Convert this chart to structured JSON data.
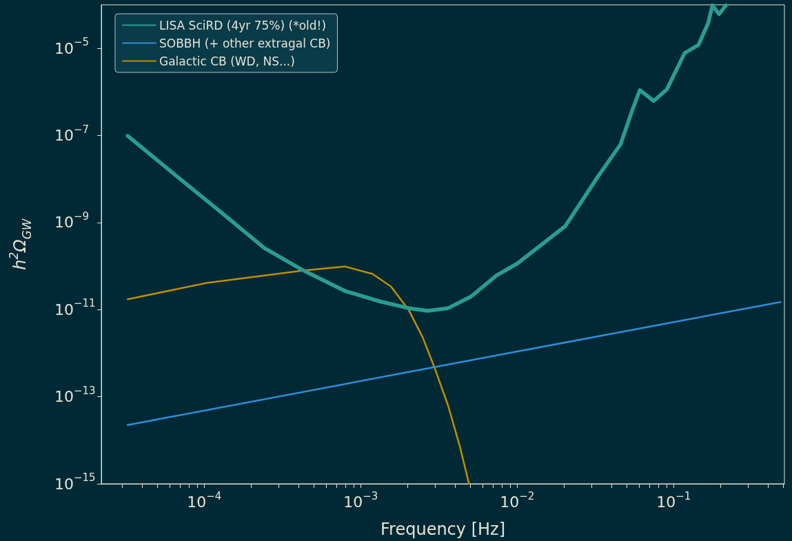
{
  "chart_data": {
    "type": "line",
    "xlabel": "Frequency [Hz]",
    "ylabel": "h$^{2}$Ω$_{GW}$",
    "log": "xy",
    "grid": false,
    "legend": "top left",
    "marker": "none",
    "line_style": "solid",
    "xlim": [
      2.2e-05,
      0.51
    ],
    "ylim": [
      1e-15,
      0.0001
    ],
    "xticks": [
      {
        "value": 3e-05,
        "label": null
      },
      {
        "value": 4e-05,
        "label": null
      },
      {
        "value": 5e-05,
        "label": null
      },
      {
        "value": 6e-05,
        "label": null
      },
      {
        "value": 7e-05,
        "label": null
      },
      {
        "value": 8e-05,
        "label": null
      },
      {
        "value": 9e-05,
        "label": null
      },
      {
        "value": 0.0001,
        "label": "10$^{−4}$"
      },
      {
        "value": 0.0002,
        "label": null
      },
      {
        "value": 0.0003,
        "label": null
      },
      {
        "value": 0.0004,
        "label": null
      },
      {
        "value": 0.0005,
        "label": null
      },
      {
        "value": 0.0006,
        "label": null
      },
      {
        "value": 0.0007,
        "label": null
      },
      {
        "value": 0.0008,
        "label": null
      },
      {
        "value": 0.0009,
        "label": null
      },
      {
        "value": 0.001,
        "label": "10$^{−3}$"
      },
      {
        "value": 0.002,
        "label": null
      },
      {
        "value": 0.003,
        "label": null
      },
      {
        "value": 0.004,
        "label": null
      },
      {
        "value": 0.005,
        "label": null
      },
      {
        "value": 0.006,
        "label": null
      },
      {
        "value": 0.007,
        "label": null
      },
      {
        "value": 0.008,
        "label": null
      },
      {
        "value": 0.009,
        "label": null
      },
      {
        "value": 0.01,
        "label": "10$^{−2}$"
      },
      {
        "value": 0.02,
        "label": null
      },
      {
        "value": 0.03,
        "label": null
      },
      {
        "value": 0.04,
        "label": null
      },
      {
        "value": 0.05,
        "label": null
      },
      {
        "value": 0.06,
        "label": null
      },
      {
        "value": 0.07,
        "label": null
      },
      {
        "value": 0.08,
        "label": null
      },
      {
        "value": 0.09,
        "label": null
      },
      {
        "value": 0.1,
        "label": "10$^{−1}$"
      },
      {
        "value": 0.2,
        "label": null
      },
      {
        "value": 0.3,
        "label": null
      },
      {
        "value": 0.4,
        "label": null
      },
      {
        "value": 0.5,
        "label": null
      }
    ],
    "yticks": [
      {
        "value": 1e-15,
        "label": "10$^{−15}$"
      },
      {
        "value": 1e-13,
        "label": "10$^{−13}$"
      },
      {
        "value": 1e-11,
        "label": "10$^{−11}$"
      },
      {
        "value": 1e-09,
        "label": "10$^{−9}$"
      },
      {
        "value": 1e-07,
        "label": "10$^{−7}$"
      },
      {
        "value": 1e-05,
        "label": "10$^{−5}$"
      }
    ],
    "series": [
      {
        "name": "LISA SciRD (4yr 75%) (*old!)",
        "color": "#2a9d8f",
        "x": [
          3.24e-05,
          6.27e-05,
          0.000124,
          0.000242,
          0.000431,
          0.00079,
          0.00132,
          0.00203,
          0.00267,
          0.00362,
          0.00507,
          0.00738,
          0.01,
          0.0203,
          0.0327,
          0.0458,
          0.0545,
          0.0608,
          0.0745,
          0.0904,
          0.1175,
          0.144,
          0.166,
          0.177,
          0.195,
          0.216
        ],
        "values": [
          9.8e-08,
          1.39e-08,
          1.9e-09,
          2.6e-10,
          7.9e-11,
          2.7e-11,
          1.55e-11,
          1.08e-11,
          9.4e-12,
          1.08e-11,
          2e-11,
          6.1e-11,
          1.14e-10,
          8.3e-10,
          1.12e-08,
          6.3e-08,
          3.9e-07,
          1.1e-06,
          6.2e-07,
          1.14e-06,
          7.8e-06,
          1.2e-05,
          3.8e-05,
          9.8e-05,
          6.1e-05,
          9.8e-05
        ]
      },
      {
        "name": "SOBBH (+ other extragal CB)",
        "color": "#2e8fdc",
        "x": [
          3.24e-05,
          0.01,
          0.482
        ],
        "values": [
          2.24e-14,
          1.09e-12,
          1.5e-11
        ]
      },
      {
        "name": "Galactic CB (WD, NS...)",
        "color": "#bf8f00",
        "x": [
          3.24e-05,
          0.000104,
          0.000431,
          0.00079,
          0.00119,
          0.00156,
          0.00203,
          0.00249,
          0.00296,
          0.00362,
          0.00431,
          0.00492
        ],
        "values": [
          1.73e-11,
          4.1e-11,
          7.9e-11,
          9.8e-11,
          6.6e-11,
          3.4e-11,
          9.7e-12,
          2.3e-12,
          4.7e-13,
          6.2e-14,
          7e-15,
          1e-15
        ]
      }
    ]
  }
}
